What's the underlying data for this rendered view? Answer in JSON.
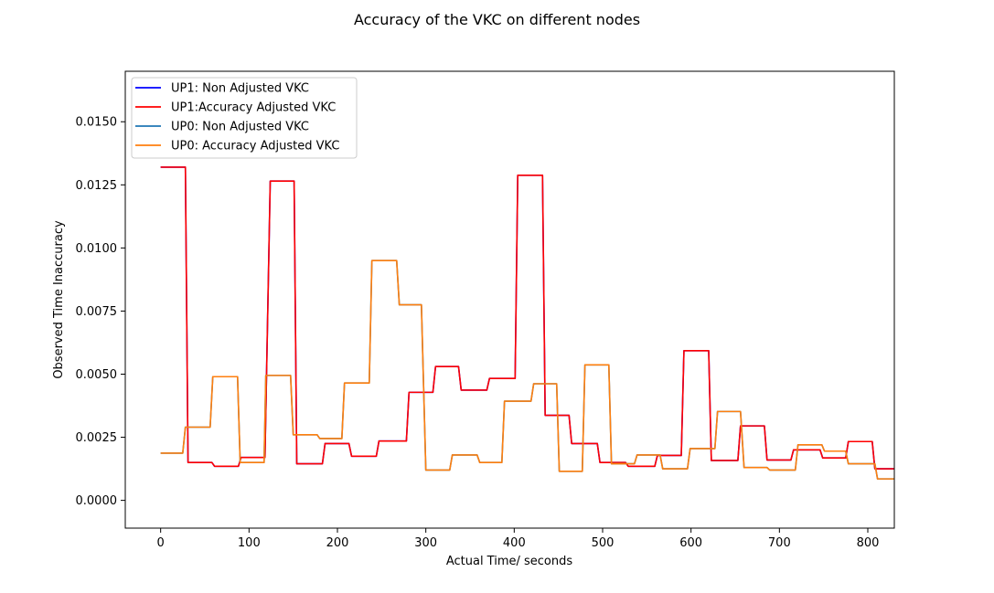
{
  "chart_data": {
    "type": "line",
    "title": "Accuracy of the VKC on different nodes",
    "xlabel": "Actual Time/ seconds",
    "ylabel": "Observed Time Inaccuracy",
    "xlim": [
      -40,
      830
    ],
    "ylim": [
      -0.0011,
      0.017
    ],
    "xticks": [
      0,
      100,
      200,
      300,
      400,
      500,
      600,
      700,
      800
    ],
    "xtick_labels": [
      "0",
      "100",
      "200",
      "300",
      "400",
      "500",
      "600",
      "700",
      "800"
    ],
    "yticks": [
      0.0,
      0.0025,
      0.005,
      0.0075,
      0.01,
      0.0125,
      0.015
    ],
    "ytick_labels": [
      "0.0000",
      "0.0025",
      "0.0050",
      "0.0075",
      "0.0100",
      "0.0125",
      "0.0150"
    ],
    "legend_position": "top-left",
    "grid": false,
    "series": [
      {
        "name": "UP1: Non Adjusted VKC",
        "color": "#0000ff",
        "x": [
          0,
          28,
          31,
          58,
          61,
          88,
          91,
          118,
          124,
          151,
          154,
          183,
          186,
          213,
          216,
          244,
          247,
          278,
          281,
          308,
          311,
          337,
          340,
          369,
          372,
          401,
          404,
          432,
          435,
          462,
          465,
          494,
          497,
          526,
          529,
          559,
          562,
          589,
          592,
          620,
          623,
          653,
          656,
          683,
          686,
          713,
          716,
          746,
          749,
          775,
          778,
          805,
          808,
          830
        ],
        "y": [
          0.0132,
          0.0132,
          0.0015,
          0.0015,
          0.00135,
          0.00135,
          0.0017,
          0.0017,
          0.01265,
          0.01265,
          0.00145,
          0.00145,
          0.00225,
          0.00225,
          0.00175,
          0.00175,
          0.00235,
          0.00235,
          0.00428,
          0.00428,
          0.0053,
          0.0053,
          0.00437,
          0.00437,
          0.00483,
          0.00483,
          0.01288,
          0.01288,
          0.00337,
          0.00337,
          0.00225,
          0.00225,
          0.0015,
          0.0015,
          0.00135,
          0.00135,
          0.00178,
          0.00178,
          0.00593,
          0.00593,
          0.00158,
          0.00158,
          0.00295,
          0.00295,
          0.0016,
          0.0016,
          0.002,
          0.002,
          0.00168,
          0.00168,
          0.00233,
          0.00233,
          0.00125,
          0.00125
        ]
      },
      {
        "name": "UP1:Accuracy Adjusted VKC",
        "color": "#ff0000",
        "x": [
          0,
          28,
          31,
          58,
          61,
          88,
          91,
          118,
          124,
          151,
          154,
          183,
          186,
          213,
          216,
          244,
          247,
          278,
          281,
          308,
          311,
          337,
          340,
          369,
          372,
          401,
          404,
          432,
          435,
          462,
          465,
          494,
          497,
          526,
          529,
          559,
          562,
          589,
          592,
          620,
          623,
          653,
          656,
          683,
          686,
          713,
          716,
          746,
          749,
          775,
          778,
          805,
          808,
          830
        ],
        "y": [
          0.0132,
          0.0132,
          0.0015,
          0.0015,
          0.00135,
          0.00135,
          0.0017,
          0.0017,
          0.01265,
          0.01265,
          0.00145,
          0.00145,
          0.00225,
          0.00225,
          0.00175,
          0.00175,
          0.00235,
          0.00235,
          0.00428,
          0.00428,
          0.0053,
          0.0053,
          0.00437,
          0.00437,
          0.00483,
          0.00483,
          0.01288,
          0.01288,
          0.00337,
          0.00337,
          0.00225,
          0.00225,
          0.0015,
          0.0015,
          0.00135,
          0.00135,
          0.00178,
          0.00178,
          0.00593,
          0.00593,
          0.00158,
          0.00158,
          0.00295,
          0.00295,
          0.0016,
          0.0016,
          0.002,
          0.002,
          0.00168,
          0.00168,
          0.00233,
          0.00233,
          0.00125,
          0.00125
        ]
      },
      {
        "name": "UP0: Non Adjusted VKC",
        "color": "#1f77b4",
        "x": [
          0,
          25,
          28,
          56,
          59,
          87,
          90,
          117,
          119,
          147,
          150,
          177,
          180,
          205,
          208,
          236,
          239,
          267,
          270,
          295,
          300,
          327,
          330,
          358,
          361,
          386,
          389,
          419,
          422,
          448,
          451,
          477,
          480,
          507,
          510,
          536,
          539,
          565,
          568,
          596,
          599,
          627,
          630,
          656,
          660,
          686,
          689,
          718,
          721,
          748,
          751,
          775,
          778,
          808,
          811,
          830
        ],
        "y": [
          0.00187,
          0.00187,
          0.0029,
          0.0029,
          0.0049,
          0.0049,
          0.0015,
          0.0015,
          0.00495,
          0.00495,
          0.0026,
          0.0026,
          0.00245,
          0.00245,
          0.00465,
          0.00465,
          0.0095,
          0.0095,
          0.00775,
          0.00775,
          0.0012,
          0.0012,
          0.0018,
          0.0018,
          0.0015,
          0.0015,
          0.00393,
          0.00393,
          0.00462,
          0.00462,
          0.00115,
          0.00115,
          0.00537,
          0.00537,
          0.00145,
          0.00145,
          0.0018,
          0.0018,
          0.00125,
          0.00125,
          0.00205,
          0.00205,
          0.00352,
          0.00352,
          0.0013,
          0.0013,
          0.0012,
          0.0012,
          0.0022,
          0.0022,
          0.00195,
          0.00195,
          0.00145,
          0.00145,
          0.00085,
          0.00085
        ]
      },
      {
        "name": "UP0: Accuracy Adjusted VKC",
        "color": "#ff7f0e",
        "x": [
          0,
          25,
          28,
          56,
          59,
          87,
          90,
          117,
          119,
          147,
          150,
          177,
          180,
          205,
          208,
          236,
          239,
          267,
          270,
          295,
          300,
          327,
          330,
          358,
          361,
          386,
          389,
          419,
          422,
          448,
          451,
          477,
          480,
          507,
          510,
          536,
          539,
          565,
          568,
          596,
          599,
          627,
          630,
          656,
          660,
          686,
          689,
          718,
          721,
          748,
          751,
          775,
          778,
          808,
          811,
          830
        ],
        "y": [
          0.00187,
          0.00187,
          0.0029,
          0.0029,
          0.0049,
          0.0049,
          0.0015,
          0.0015,
          0.00495,
          0.00495,
          0.0026,
          0.0026,
          0.00245,
          0.00245,
          0.00465,
          0.00465,
          0.0095,
          0.0095,
          0.00775,
          0.00775,
          0.0012,
          0.0012,
          0.0018,
          0.0018,
          0.0015,
          0.0015,
          0.00393,
          0.00393,
          0.00462,
          0.00462,
          0.00115,
          0.00115,
          0.00537,
          0.00537,
          0.00145,
          0.00145,
          0.0018,
          0.0018,
          0.00125,
          0.00125,
          0.00205,
          0.00205,
          0.00352,
          0.00352,
          0.0013,
          0.0013,
          0.0012,
          0.0012,
          0.0022,
          0.0022,
          0.00195,
          0.00195,
          0.00145,
          0.00145,
          0.00085,
          0.00085
        ]
      }
    ]
  }
}
